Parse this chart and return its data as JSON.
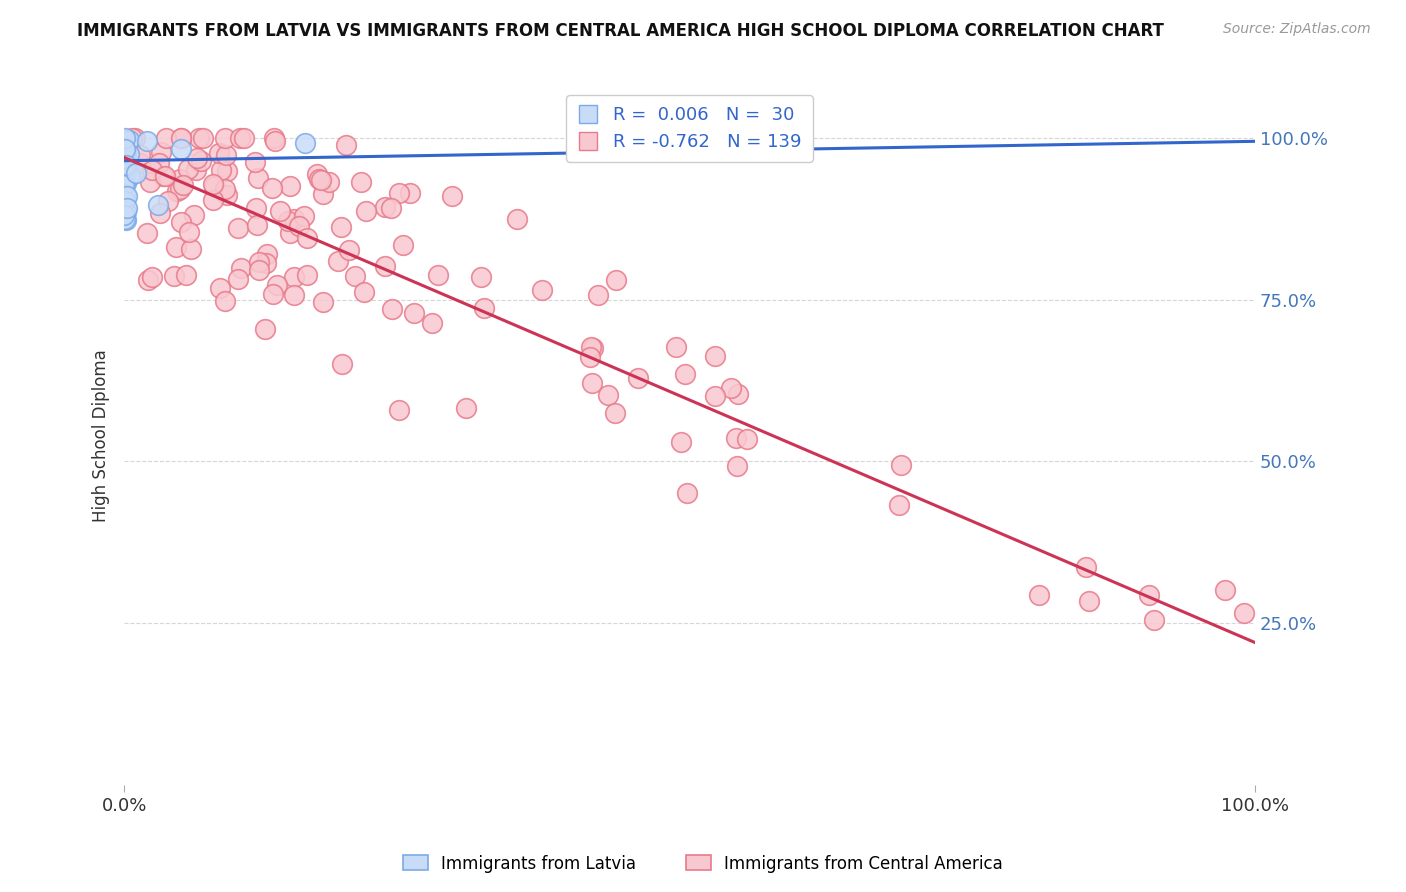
{
  "title": "IMMIGRANTS FROM LATVIA VS IMMIGRANTS FROM CENTRAL AMERICA HIGH SCHOOL DIPLOMA CORRELATION CHART",
  "source": "Source: ZipAtlas.com",
  "ylabel": "High School Diploma",
  "legend_label_latvia": "Immigrants from Latvia",
  "legend_label_central": "Immigrants from Central America",
  "r_latvia": 0.006,
  "n_latvia": 30,
  "r_central": -0.762,
  "n_central": 139,
  "title_fontsize": 12,
  "background_color": "#ffffff",
  "grid_color": "#cccccc",
  "latvia_facecolor": "#c8dcf8",
  "latvia_edgecolor": "#7aaae8",
  "central_facecolor": "#f8c8d0",
  "central_edgecolor": "#e87a8a",
  "trendline_latvia_color": "#3366cc",
  "trendline_central_color": "#cc3355",
  "right_axis_color": "#4477bb",
  "seed": 42
}
